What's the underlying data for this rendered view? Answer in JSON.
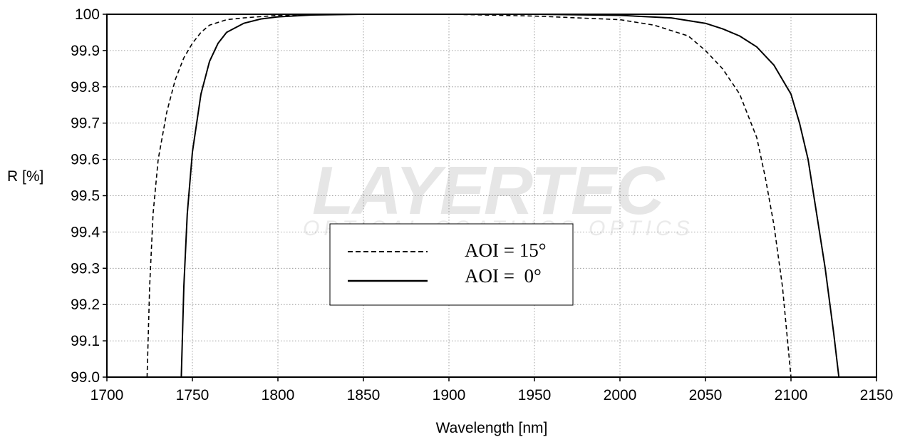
{
  "chart_data": {
    "type": "line",
    "xlabel": "Wavelength [nm]",
    "ylabel": "R [%]",
    "xlim": [
      1700,
      2150
    ],
    "ylim": [
      99.0,
      100.0
    ],
    "x_ticks": [
      1700,
      1750,
      1800,
      1850,
      1900,
      1950,
      2000,
      2050,
      2100,
      2150
    ],
    "y_tick_labels": [
      "99.0",
      "99.1",
      "99.2",
      "99.3",
      "99.4",
      "99.5",
      "99.6",
      "99.7",
      "99.8",
      "99.9",
      "100"
    ],
    "grid": true,
    "legend_position": "center",
    "series": [
      {
        "name": "AOI = 15°",
        "style": "dashed",
        "x": [
          1723.5,
          1725,
          1727,
          1730,
          1735,
          1740,
          1745,
          1750,
          1755,
          1760,
          1770,
          1780,
          1800,
          1820,
          1850,
          1900,
          1950,
          2000,
          2020,
          2040,
          2050,
          2060,
          2070,
          2080,
          2085,
          2090,
          2095,
          2098,
          2100
        ],
        "y": [
          99.0,
          99.25,
          99.45,
          99.6,
          99.73,
          99.82,
          99.88,
          99.92,
          99.95,
          99.97,
          99.985,
          99.99,
          99.997,
          99.999,
          100.0,
          100.0,
          99.995,
          99.985,
          99.97,
          99.94,
          99.9,
          99.85,
          99.78,
          99.66,
          99.55,
          99.42,
          99.25,
          99.1,
          99.0
        ]
      },
      {
        "name": "AOI =  0°",
        "style": "solid",
        "x": [
          1743.5,
          1745,
          1747,
          1750,
          1755,
          1760,
          1765,
          1770,
          1780,
          1790,
          1800,
          1820,
          1850,
          1900,
          1950,
          2000,
          2030,
          2050,
          2060,
          2070,
          2080,
          2090,
          2100,
          2105,
          2110,
          2115,
          2120,
          2125,
          2128
        ],
        "y": [
          99.0,
          99.25,
          99.45,
          99.62,
          99.78,
          99.87,
          99.92,
          99.95,
          99.975,
          99.987,
          99.993,
          99.998,
          100.0,
          100.0,
          100.0,
          99.997,
          99.99,
          99.975,
          99.96,
          99.94,
          99.91,
          99.86,
          99.78,
          99.7,
          99.6,
          99.45,
          99.3,
          99.12,
          99.0
        ]
      }
    ]
  }
}
